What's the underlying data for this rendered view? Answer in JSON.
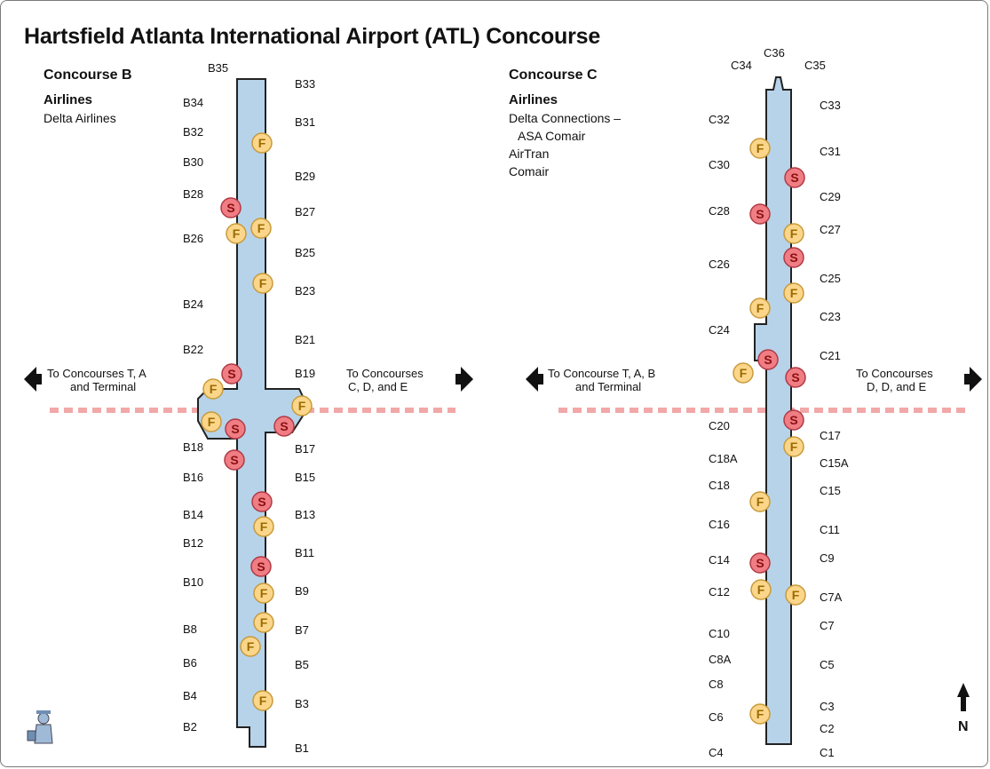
{
  "title": "Hartsfield Atlanta International Airport (ATL) Concourse",
  "colors": {
    "concourse_fill": "#b6d3ea",
    "concourse_outline": "#222222",
    "train_line": "#f2a8a8",
    "food_fill": "#fbd68a",
    "food_text": "#9a6b00",
    "shop_fill": "#f07d84",
    "shop_text": "#8a1010"
  },
  "legend_letters": {
    "food": "F",
    "shop": "S"
  },
  "concourse_b": {
    "heading": "Concourse B",
    "airlines_label": "Airlines",
    "airlines": [
      "Delta Airlines"
    ],
    "gates_west": [
      "B34",
      "B32",
      "B30",
      "B28",
      "B26",
      "B24",
      "B22",
      "B18",
      "B16",
      "B14",
      "B12",
      "B10",
      "B8",
      "B6",
      "B4",
      "B2"
    ],
    "gates_east": [
      "B33",
      "B31",
      "B29",
      "B27",
      "B25",
      "B23",
      "B21",
      "B19",
      "B17",
      "B15",
      "B13",
      "B11",
      "B9",
      "B7",
      "B5",
      "B3",
      "B1"
    ],
    "gate_top": "B35",
    "to_west": [
      "To Concourses T, A",
      "and Terminal"
    ],
    "to_east": [
      "To Concourses",
      "C, D, and E"
    ]
  },
  "concourse_c": {
    "heading": "Concourse C",
    "airlines_label": "Airlines",
    "airlines": [
      "Delta Connections –",
      "ASA Comair",
      "AirTran",
      "Comair"
    ],
    "gates_top": [
      "C34",
      "C36",
      "C35"
    ],
    "gates_west": [
      "C32",
      "C30",
      "C28",
      "C26",
      "C24",
      "C20",
      "C18A",
      "C18",
      "C16",
      "C14",
      "C12",
      "C10",
      "C8A",
      "C8",
      "C6",
      "C4"
    ],
    "gates_east": [
      "C33",
      "C31",
      "C29",
      "C27",
      "C25",
      "C23",
      "C21",
      "C17",
      "C15A",
      "C15",
      "C11",
      "C9",
      "C7A",
      "C7",
      "C5",
      "C3",
      "C2",
      "C1"
    ],
    "to_west": [
      "To Concourse T, A, B",
      "and Terminal"
    ],
    "to_east": [
      "To Concourses",
      "D, D, and E"
    ]
  },
  "north_label": "N"
}
